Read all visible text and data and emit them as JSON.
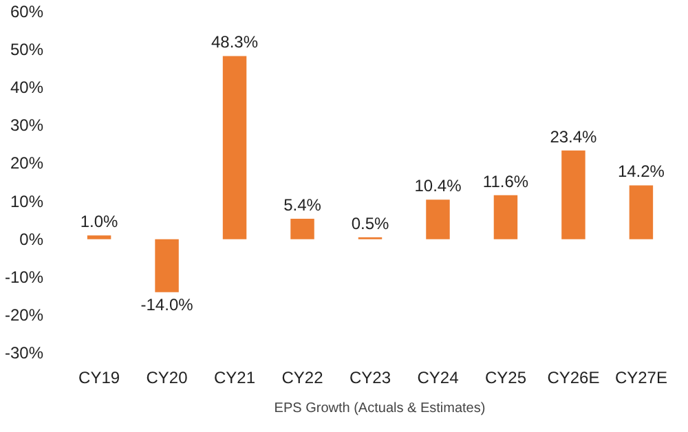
{
  "chart_data": {
    "type": "bar",
    "categories": [
      "CY19",
      "CY20",
      "CY21",
      "CY22",
      "CY23",
      "CY24",
      "CY25",
      "CY26E",
      "CY27E"
    ],
    "series": [
      {
        "name": "EPS Growth (Actuals & Estimates)",
        "color": "#ed7d31",
        "values": [
          1.0,
          -14.0,
          48.3,
          5.4,
          0.5,
          10.4,
          11.6,
          23.4,
          14.2
        ],
        "value_labels": [
          "1.0%",
          "-14.0%",
          "48.3%",
          "5.4%",
          "0.5%",
          "10.4%",
          "11.6%",
          "23.4%",
          "14.2%"
        ]
      }
    ],
    "ylim": [
      -30,
      60
    ],
    "yticks": [
      {
        "value": -30,
        "label": "-30%"
      },
      {
        "value": -20,
        "label": "-20%"
      },
      {
        "value": -10,
        "label": "-10%"
      },
      {
        "value": 0,
        "label": "0%"
      },
      {
        "value": 10,
        "label": "10%"
      },
      {
        "value": 20,
        "label": "20%"
      },
      {
        "value": 30,
        "label": "30%"
      },
      {
        "value": 40,
        "label": "40%"
      },
      {
        "value": 50,
        "label": "50%"
      },
      {
        "value": 60,
        "label": "60%"
      }
    ],
    "grid": false,
    "legend": "bottom"
  }
}
